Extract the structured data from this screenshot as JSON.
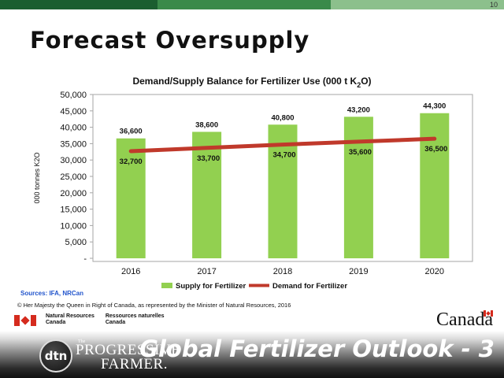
{
  "slide": {
    "page_number": "10",
    "title": "Forecast Oversupply",
    "sources": "Sources: IFA, NRCan",
    "copyright": "© Her Majesty the Queen in Right of Canada, as represented by the Minister of Natural Resources, 2016",
    "dept_en_1": "Natural Resources",
    "dept_en_2": "Canada",
    "dept_fr_1": "Ressources naturelles",
    "dept_fr_2": "Canada",
    "canada_wordmark": "Canada",
    "footer_title": "Global Fertilizer Outlook - 3",
    "logo_dtn": "dtn",
    "logo_the": "The",
    "logo_line1": "PROGRESSIVE",
    "logo_line2": "FARMER.",
    "top_bar_colors": [
      "#1b5e30",
      "#3a8a4a",
      "#8cc08c"
    ]
  },
  "chart_data": {
    "type": "bar",
    "title_main": "Demand/Supply Balance for Fertilizer Use (000 t K",
    "title_sub": "2",
    "title_end": "O)",
    "ylabel": "000 tonnes K2O",
    "ylim": [
      0,
      50000
    ],
    "yticks": [
      0,
      5000,
      10000,
      15000,
      20000,
      25000,
      30000,
      35000,
      40000,
      45000,
      50000
    ],
    "ytick_labels": [
      "-",
      "5,000",
      "10,000",
      "15,000",
      "20,000",
      "25,000",
      "30,000",
      "35,000",
      "40,000",
      "45,000",
      "50,000"
    ],
    "categories": [
      "2016",
      "2017",
      "2018",
      "2019",
      "2020"
    ],
    "series": [
      {
        "name": "Supply for Fertilizer",
        "kind": "bar",
        "color": "#92d050",
        "values": [
          36600,
          38600,
          40800,
          43200,
          44300
        ],
        "labels": [
          "36,600",
          "38,600",
          "40,800",
          "43,200",
          "44,300"
        ]
      },
      {
        "name": "Demand for Fertilizer",
        "kind": "line",
        "color": "#c0392b",
        "values": [
          32700,
          33700,
          34700,
          35600,
          36500
        ],
        "labels": [
          "32,700",
          "33,700",
          "34,700",
          "35,600",
          "36,500"
        ]
      }
    ],
    "legend_position": "bottom",
    "grid": false
  }
}
